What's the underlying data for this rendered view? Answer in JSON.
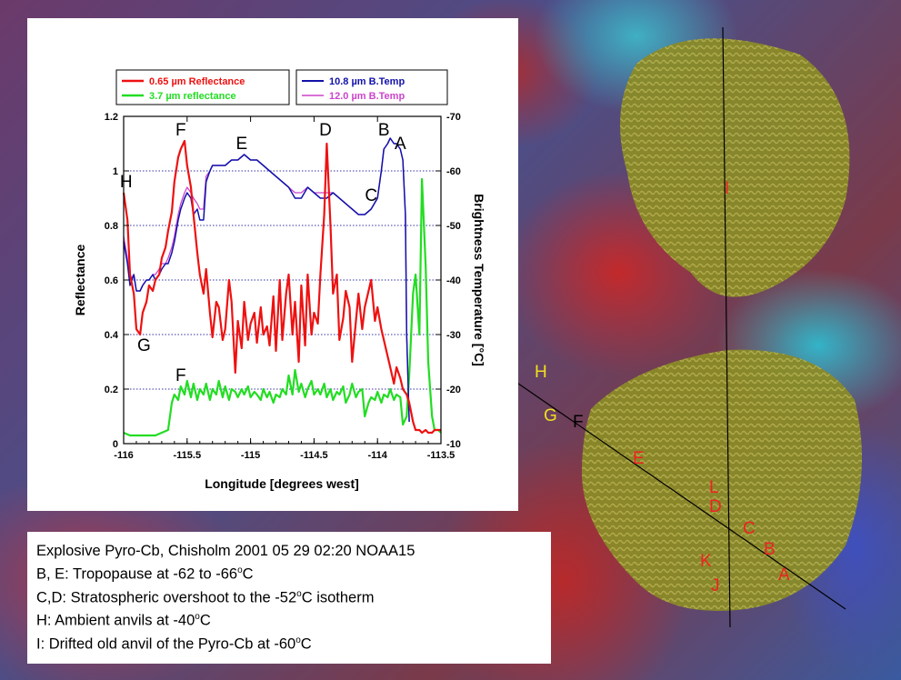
{
  "chart_data": {
    "type": "line",
    "xlabel": "Longitude [degrees west]",
    "ylabel": "Reflectance",
    "y2label": "Brightness Temperature [°C]",
    "xlim": [
      -116,
      -113.5
    ],
    "ylim": [
      0,
      1.2
    ],
    "y2lim": [
      -10,
      -70
    ],
    "x_ticks": [
      "-116",
      "-115.5",
      "-115",
      "-114.5",
      "-114",
      "-113.5"
    ],
    "x_tick_values": [
      -116,
      -115.5,
      -115,
      -114.5,
      -114,
      -113.5
    ],
    "y_ticks": [
      "0",
      "0.2",
      "0.4",
      "0.6",
      "0.8",
      "1",
      "1.2"
    ],
    "y_tick_values": [
      0,
      0.2,
      0.4,
      0.6,
      0.8,
      1.0,
      1.2
    ],
    "y2_ticks": [
      "-10",
      "-20",
      "-30",
      "-40",
      "-50",
      "-60",
      "-70"
    ],
    "y2_tick_values": [
      -10,
      -20,
      -30,
      -40,
      -50,
      -60,
      -70
    ],
    "grid": "horizontal dotted",
    "legend": {
      "left": [
        {
          "label": "0.65 µm Reflectance",
          "color": "#ee1111"
        },
        {
          "label": "3.7 µm reflectance",
          "color": "#22dd22"
        }
      ],
      "right": [
        {
          "label": "10.8 µm B.Temp",
          "color": "#1111aa"
        },
        {
          "label": "12.0 µm B.Temp",
          "color": "#cc44cc"
        }
      ]
    },
    "series": [
      {
        "color": "#ee1111",
        "axis": "left",
        "x": [
          -116,
          -115.97,
          -115.95,
          -115.92,
          -115.9,
          -115.87,
          -115.85,
          -115.82,
          -115.8,
          -115.77,
          -115.75,
          -115.72,
          -115.7,
          -115.67,
          -115.65,
          -115.62,
          -115.6,
          -115.57,
          -115.55,
          -115.52,
          -115.5,
          -115.47,
          -115.45,
          -115.42,
          -115.4,
          -115.37,
          -115.35,
          -115.32,
          -115.3,
          -115.27,
          -115.25,
          -115.22,
          -115.2,
          -115.17,
          -115.15,
          -115.12,
          -115.1,
          -115.07,
          -115.05,
          -115.02,
          -115,
          -114.97,
          -114.95,
          -114.92,
          -114.9,
          -114.87,
          -114.85,
          -114.82,
          -114.8,
          -114.77,
          -114.75,
          -114.72,
          -114.7,
          -114.67,
          -114.65,
          -114.62,
          -114.6,
          -114.57,
          -114.55,
          -114.52,
          -114.5,
          -114.47,
          -114.45,
          -114.42,
          -114.4,
          -114.37,
          -114.35,
          -114.32,
          -114.3,
          -114.27,
          -114.25,
          -114.22,
          -114.2,
          -114.17,
          -114.15,
          -114.12,
          -114.1,
          -114.07,
          -114.05,
          -114.02,
          -114,
          -113.97,
          -113.95,
          -113.92,
          -113.9,
          -113.87,
          -113.85,
          -113.82,
          -113.8,
          -113.77,
          -113.75,
          -113.72,
          -113.7,
          -113.67,
          -113.65,
          -113.62,
          -113.6,
          -113.57,
          -113.55,
          -113.52,
          -113.5
        ],
        "y": [
          0.92,
          0.82,
          0.62,
          0.55,
          0.42,
          0.4,
          0.48,
          0.52,
          0.58,
          0.56,
          0.6,
          0.62,
          0.68,
          0.72,
          0.78,
          0.85,
          0.96,
          1.05,
          1.08,
          1.11,
          1.02,
          0.94,
          0.84,
          0.7,
          0.62,
          0.55,
          0.64,
          0.48,
          0.39,
          0.52,
          0.5,
          0.38,
          0.42,
          0.6,
          0.52,
          0.26,
          0.45,
          0.35,
          0.52,
          0.38,
          0.44,
          0.48,
          0.37,
          0.5,
          0.4,
          0.43,
          0.36,
          0.54,
          0.34,
          0.6,
          0.38,
          0.55,
          0.62,
          0.4,
          0.52,
          0.3,
          0.58,
          0.36,
          0.62,
          0.4,
          0.48,
          0.44,
          0.62,
          0.84,
          1.1,
          0.8,
          0.55,
          0.62,
          0.38,
          0.46,
          0.56,
          0.5,
          0.3,
          0.45,
          0.55,
          0.42,
          0.5,
          0.56,
          0.6,
          0.45,
          0.5,
          0.42,
          0.38,
          0.32,
          0.28,
          0.22,
          0.28,
          0.24,
          0.2,
          0.18,
          0.15,
          0.08,
          0.05,
          0.05,
          0.04,
          0.05,
          0.04,
          0.04,
          0.05,
          0.05,
          0.05
        ]
      },
      {
        "color": "#22dd22",
        "axis": "left",
        "x": [
          -116,
          -115.95,
          -115.9,
          -115.85,
          -115.8,
          -115.75,
          -115.7,
          -115.65,
          -115.62,
          -115.6,
          -115.57,
          -115.55,
          -115.52,
          -115.5,
          -115.47,
          -115.45,
          -115.42,
          -115.4,
          -115.37,
          -115.35,
          -115.32,
          -115.3,
          -115.27,
          -115.25,
          -115.22,
          -115.2,
          -115.17,
          -115.15,
          -115.12,
          -115.1,
          -115.07,
          -115.05,
          -115.02,
          -115,
          -114.97,
          -114.95,
          -114.92,
          -114.9,
          -114.87,
          -114.85,
          -114.82,
          -114.8,
          -114.77,
          -114.75,
          -114.72,
          -114.7,
          -114.67,
          -114.65,
          -114.62,
          -114.6,
          -114.57,
          -114.55,
          -114.52,
          -114.5,
          -114.47,
          -114.45,
          -114.42,
          -114.4,
          -114.37,
          -114.35,
          -114.32,
          -114.3,
          -114.27,
          -114.25,
          -114.22,
          -114.2,
          -114.17,
          -114.15,
          -114.12,
          -114.1,
          -114.07,
          -114.05,
          -114.02,
          -114,
          -113.97,
          -113.95,
          -113.92,
          -113.9,
          -113.87,
          -113.85,
          -113.82,
          -113.8,
          -113.77,
          -113.75,
          -113.72,
          -113.7,
          -113.67,
          -113.65,
          -113.62,
          -113.6,
          -113.57,
          -113.55,
          -113.52,
          -113.5
        ],
        "y": [
          0.04,
          0.03,
          0.03,
          0.03,
          0.03,
          0.03,
          0.04,
          0.05,
          0.15,
          0.18,
          0.16,
          0.21,
          0.18,
          0.23,
          0.17,
          0.22,
          0.16,
          0.2,
          0.18,
          0.22,
          0.16,
          0.2,
          0.18,
          0.23,
          0.17,
          0.21,
          0.16,
          0.2,
          0.19,
          0.17,
          0.2,
          0.18,
          0.21,
          0.17,
          0.19,
          0.18,
          0.16,
          0.2,
          0.17,
          0.19,
          0.15,
          0.18,
          0.17,
          0.2,
          0.18,
          0.25,
          0.18,
          0.27,
          0.19,
          0.22,
          0.17,
          0.2,
          0.23,
          0.18,
          0.2,
          0.18,
          0.22,
          0.17,
          0.2,
          0.16,
          0.19,
          0.18,
          0.21,
          0.15,
          0.18,
          0.22,
          0.17,
          0.19,
          0.2,
          0.1,
          0.15,
          0.17,
          0.16,
          0.19,
          0.15,
          0.18,
          0.17,
          0.2,
          0.16,
          0.18,
          0.17,
          0.07,
          0.1,
          0.25,
          0.55,
          0.62,
          0.4,
          0.97,
          0.65,
          0.3,
          0.1,
          0.05,
          0.05,
          0.04
        ]
      },
      {
        "color": "#1111aa",
        "axis": "right",
        "x": [
          -116,
          -115.97,
          -115.95,
          -115.92,
          -115.9,
          -115.87,
          -115.85,
          -115.82,
          -115.8,
          -115.77,
          -115.75,
          -115.72,
          -115.7,
          -115.67,
          -115.65,
          -115.62,
          -115.6,
          -115.57,
          -115.55,
          -115.52,
          -115.5,
          -115.47,
          -115.45,
          -115.42,
          -115.4,
          -115.37,
          -115.35,
          -115.32,
          -115.3,
          -115.25,
          -115.2,
          -115.15,
          -115.1,
          -115.05,
          -115,
          -114.95,
          -114.9,
          -114.85,
          -114.8,
          -114.75,
          -114.7,
          -114.65,
          -114.6,
          -114.55,
          -114.5,
          -114.45,
          -114.4,
          -114.35,
          -114.3,
          -114.25,
          -114.2,
          -114.15,
          -114.1,
          -114.05,
          -114,
          -113.97,
          -113.95,
          -113.92,
          -113.9,
          -113.87,
          -113.85,
          -113.82,
          -113.8,
          -113.78,
          -113.77,
          -113.75
        ],
        "y": [
          -47,
          -43,
          -39,
          -41,
          -38,
          -38,
          -39,
          -40,
          -40,
          -41,
          -40,
          -41,
          -42,
          -43,
          -43,
          -45,
          -47,
          -51,
          -53,
          -55,
          -56,
          -55,
          -52,
          -53,
          -51,
          -51,
          -58,
          -60,
          -61,
          -61,
          -61,
          -62,
          -62,
          -63,
          -62,
          -62,
          -61,
          -60,
          -59,
          -58,
          -57,
          -55,
          -55,
          -57,
          -56,
          -55,
          -55,
          -56,
          -55,
          -54,
          -53,
          -52,
          -52,
          -53,
          -55,
          -60,
          -64,
          -65,
          -66,
          -65,
          -65,
          -64,
          -62,
          -52,
          -30,
          -14
        ]
      },
      {
        "color": "#cc44cc",
        "axis": "right",
        "x": [
          -116,
          -115.97,
          -115.95,
          -115.92,
          -115.9,
          -115.87,
          -115.85,
          -115.82,
          -115.8,
          -115.77,
          -115.75,
          -115.72,
          -115.7,
          -115.67,
          -115.65,
          -115.62,
          -115.6,
          -115.57,
          -115.55,
          -115.52,
          -115.5,
          -115.47,
          -115.45,
          -115.42,
          -115.4,
          -115.37,
          -115.35,
          -115.32,
          -115.3,
          -115.25,
          -115.2,
          -115.15,
          -115.1,
          -115.05,
          -115,
          -114.95,
          -114.9,
          -114.85,
          -114.8,
          -114.75,
          -114.7,
          -114.65,
          -114.6,
          -114.55,
          -114.5,
          -114.45,
          -114.4,
          -114.35,
          -114.3,
          -114.25,
          -114.2,
          -114.15,
          -114.1,
          -114.05,
          -114,
          -113.97,
          -113.95,
          -113.92,
          -113.9,
          -113.87,
          -113.85,
          -113.82,
          -113.8,
          -113.78,
          -113.77,
          -113.75
        ],
        "y": [
          -48,
          -44,
          -40,
          -41,
          -38,
          -38,
          -39,
          -40,
          -40,
          -41,
          -41,
          -42,
          -43,
          -43,
          -44,
          -46,
          -48,
          -52,
          -54,
          -56,
          -57,
          -56,
          -55,
          -54,
          -53,
          -53,
          -59,
          -60,
          -61,
          -61,
          -61,
          -62,
          -62,
          -63,
          -62,
          -62,
          -61,
          -60,
          -59,
          -58,
          -57,
          -56,
          -56,
          -57,
          -56,
          -56,
          -56,
          -56,
          -55,
          -54,
          -53,
          -52,
          -52,
          -53,
          -55,
          -60,
          -64,
          -65,
          -66,
          -65,
          -65,
          -64,
          -62,
          -52,
          -30,
          -14
        ]
      }
    ],
    "annotations": [
      {
        "text": "H",
        "x": -115.98,
        "y": 0.94,
        "color": "#000000"
      },
      {
        "text": "G",
        "x": -115.84,
        "y": 0.34,
        "color": "#000000"
      },
      {
        "text": "F",
        "x": -115.55,
        "y": 1.13,
        "color": "#000000"
      },
      {
        "text": "E",
        "x": -115.07,
        "y": 1.08,
        "color": "#000000"
      },
      {
        "text": "D",
        "x": -114.41,
        "y": 1.13,
        "color": "#000000"
      },
      {
        "text": "B",
        "x": -113.95,
        "y": 1.13,
        "color": "#000000"
      },
      {
        "text": "A",
        "x": -113.82,
        "y": 1.08,
        "color": "#000000"
      },
      {
        "text": "C",
        "x": -114.05,
        "y": 0.89,
        "color": "#000000"
      },
      {
        "text": "F",
        "x": -115.55,
        "y": 0.23,
        "color": "#000000"
      }
    ]
  },
  "image_labels": [
    {
      "text": "I",
      "color": "#ee2222"
    },
    {
      "text": "H",
      "color": "#f0e020"
    },
    {
      "text": "G",
      "color": "#f0e020"
    },
    {
      "text": "F",
      "color": "#000000"
    },
    {
      "text": "E",
      "color": "#ee2222"
    },
    {
      "text": "L",
      "color": "#ee2222"
    },
    {
      "text": "D",
      "color": "#ee2222"
    },
    {
      "text": "C",
      "color": "#ee2222"
    },
    {
      "text": "B",
      "color": "#ee2222"
    },
    {
      "text": "K",
      "color": "#ee2222"
    },
    {
      "text": "A",
      "color": "#ee2222"
    },
    {
      "text": "J",
      "color": "#ee2222"
    }
  ],
  "caption": {
    "line1": "Explosive Pyro-Cb, Chisholm 2001 05 29 02:20 NOAA15",
    "line2": "B, E: Tropopause at -62 to -66",
    "line2_tail": "C",
    "line3": "C,D: Stratospheric overshoot to the -52",
    "line3_tail": "C isotherm",
    "line4": "H: Ambient anvils at -40",
    "line4_tail": "C",
    "line5": "I: Drifted old anvil of the Pyro-Cb at -60",
    "line5_tail": "C",
    "degree_sup": "o"
  }
}
